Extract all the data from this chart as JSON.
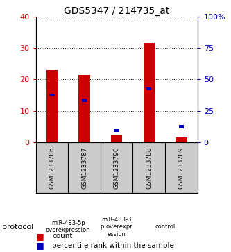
{
  "title": "GDS5347 / 214735_at",
  "samples": [
    "GSM1233786",
    "GSM1233787",
    "GSM1233790",
    "GSM1233788",
    "GSM1233789"
  ],
  "red_values": [
    23,
    21.5,
    2.5,
    31.5,
    1.5
  ],
  "blue_values_pct": [
    37.5,
    33.5,
    9.5,
    42.5,
    12.5
  ],
  "left_ylim": [
    0,
    40
  ],
  "right_ylim": [
    0,
    100
  ],
  "left_yticks": [
    0,
    10,
    20,
    30,
    40
  ],
  "right_yticks": [
    0,
    25,
    50,
    75,
    100
  ],
  "right_yticklabels": [
    "0",
    "25",
    "50",
    "75",
    "100%"
  ],
  "bar_width": 0.35,
  "red_color": "#cc0000",
  "blue_color": "#0000bb",
  "protocol_groups": [
    {
      "label": "miR-483-5p\noverexpression",
      "count": 2,
      "color": "#aaddaa"
    },
    {
      "label": "miR-483-3\np overexpr\nession",
      "count": 1,
      "color": "#aaddaa"
    },
    {
      "label": "control",
      "count": 2,
      "color": "#33cc55"
    }
  ],
  "protocol_label": "protocol",
  "legend_items": [
    {
      "color": "#cc0000",
      "label": "count"
    },
    {
      "color": "#0000bb",
      "label": "percentile rank within the sample"
    }
  ],
  "bg_color": "#cccccc",
  "plot_bg": "#ffffff"
}
